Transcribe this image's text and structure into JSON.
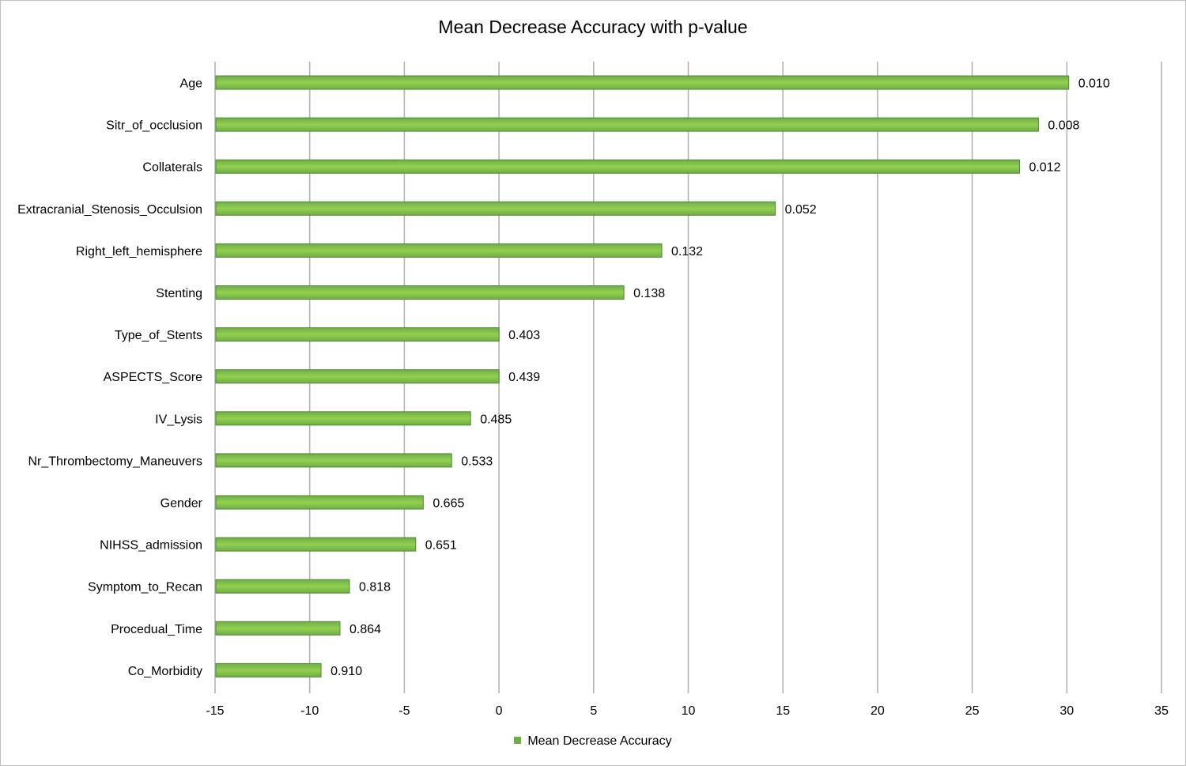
{
  "chart_data": {
    "type": "bar",
    "orientation": "horizontal",
    "title": "Mean Decrease Accuracy with p-value",
    "xlabel": "",
    "ylabel": "",
    "xlim": [
      -15,
      35
    ],
    "x_ticks": [
      -15,
      -10,
      -5,
      0,
      5,
      10,
      15,
      20,
      25,
      30,
      35
    ],
    "grid": "vertical",
    "legend_position": "bottom",
    "bar_color": "#70ad47",
    "bar_highlight": "#92d050",
    "bar_edge": "#4e8a34",
    "categories": [
      "Age",
      "Sitr_of_occlusion",
      "Collaterals",
      "Extracranial_Stenosis_Occulsion",
      "Right_left_hemisphere",
      "Stenting",
      "Type_of_Stents",
      "ASPECTS_Score",
      "IV_Lysis",
      "Nr_Thrombectomy_Maneuvers",
      "Gender",
      "NIHSS_admission",
      "Symptom_to_Recan",
      "Procedual_Time",
      "Co_Morbidity"
    ],
    "series": [
      {
        "name": "Mean Decrease Accuracy",
        "values": [
          30.1,
          28.5,
          27.5,
          14.6,
          8.6,
          6.6,
          0.0,
          0.0,
          -1.5,
          -2.5,
          -4.0,
          -4.4,
          -7.9,
          -8.4,
          -9.4
        ]
      }
    ],
    "data_labels": [
      "0.010",
      "0.008",
      "0.012",
      "0.052",
      "0.132",
      "0.138",
      "0.403",
      "0.439",
      "0.485",
      "0.533",
      "0.665",
      "0.651",
      "0.818",
      "0.864",
      "0.910"
    ]
  }
}
